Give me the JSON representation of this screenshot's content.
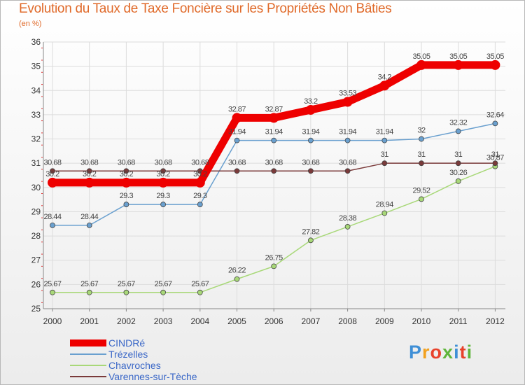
{
  "header": {
    "title": "Evolution du Taux de Taxe Foncière sur les Propriétés Non Bâties",
    "subtitle": "(en %)"
  },
  "logo": {
    "text": "Proxiti",
    "colors": [
      "#3f8fd6",
      "#f2a11f",
      "#e8422b",
      "#5fb53a",
      "#3f8fd6",
      "#e8422b",
      "#5fb53a"
    ]
  },
  "chart_data": {
    "type": "line",
    "title": "Evolution du Taux de Taxe Foncière sur les Propriétés Non Bâties",
    "ylabel": "(en %)",
    "xlabel": "",
    "ylim": [
      25,
      36
    ],
    "yticks": [
      "25",
      "26",
      "27",
      "28",
      "29",
      "30",
      "31",
      "32",
      "33",
      "34",
      "35",
      "36"
    ],
    "grid": true,
    "legend_position": "bottom-left",
    "categories": [
      "2000",
      "2001",
      "2002",
      "2003",
      "2004",
      "2005",
      "2006",
      "2007",
      "2008",
      "2009",
      "2010",
      "2011",
      "2012"
    ],
    "series": [
      {
        "name": "CINDRé",
        "color": "#ee0000",
        "emphasis": true,
        "values": [
          30.2,
          30.2,
          30.2,
          30.2,
          30.2,
          32.87,
          32.87,
          33.2,
          33.53,
          34.2,
          35.05,
          35.05,
          35.05
        ],
        "labels": [
          "30.2",
          "30.2",
          "30.2",
          "30.2",
          "30.2",
          "32.87",
          "32.87",
          "33.2",
          "33.53",
          "34.2",
          "35.05",
          "35.05",
          "35.05"
        ]
      },
      {
        "name": "Trézelles",
        "color": "#6aa0cf",
        "emphasis": false,
        "values": [
          28.44,
          28.44,
          29.3,
          29.3,
          29.3,
          31.94,
          31.94,
          31.94,
          31.94,
          31.94,
          32.0,
          32.32,
          32.64
        ],
        "labels": [
          "28.44",
          "28.44",
          "29.3",
          "29.3",
          "29.3",
          "31.94",
          "31.94",
          "31.94",
          "31.94",
          "31.94",
          "32",
          "32.32",
          "32.64"
        ]
      },
      {
        "name": "Chavroches",
        "color": "#a8d878",
        "emphasis": false,
        "values": [
          25.67,
          25.67,
          25.67,
          25.67,
          25.67,
          26.22,
          26.75,
          27.82,
          28.38,
          28.94,
          29.52,
          30.26,
          30.87
        ],
        "labels": [
          "25.67",
          "25.67",
          "25.67",
          "25.67",
          "25.67",
          "26.22",
          "26.75",
          "27.82",
          "28.38",
          "28.94",
          "29.52",
          "30.26",
          "30.87"
        ]
      },
      {
        "name": "Varennes-sur-Tèche",
        "color": "#7a3a3a",
        "emphasis": false,
        "values": [
          30.68,
          30.68,
          30.68,
          30.68,
          30.68,
          30.68,
          30.68,
          30.68,
          30.68,
          31.0,
          31.0,
          31.0,
          31.0
        ],
        "labels": [
          "30.68",
          "30.68",
          "30.68",
          "30.68",
          "30.68",
          "30.68",
          "30.68",
          "30.68",
          "30.68",
          "31",
          "31",
          "31",
          "31"
        ]
      }
    ]
  }
}
